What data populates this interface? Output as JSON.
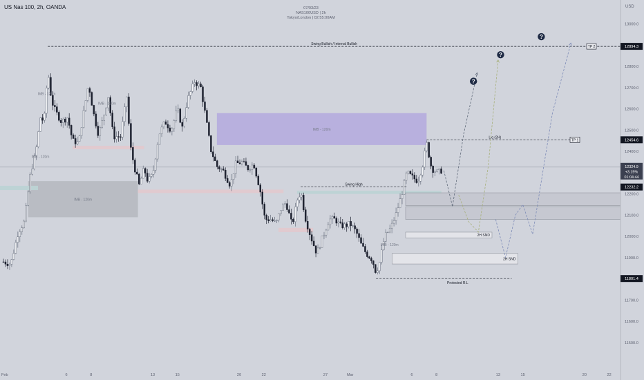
{
  "header": {
    "symbol": "US Nas 100, 2h, OANDA",
    "info_lines": [
      "07/03/23",
      "NAS100USD | 2h",
      "Tokyo/London | 02:55:00AM"
    ],
    "currency": "USD"
  },
  "chart_data": {
    "type": "candlestick",
    "price_axis": {
      "ticks": [
        13000.0,
        12900.0,
        12800.0,
        12700.0,
        12600.0,
        12500.0,
        12400.0,
        12300.0,
        12200.0,
        12100.0,
        12000.0,
        11900.0,
        11800.0,
        11700.0,
        11600.0,
        11500.0
      ],
      "tick_labels": [
        "13000.0",
        "12900.0",
        "12800.0",
        "12700.0",
        "12600.0",
        "12500.0",
        "12400.0",
        "12300.0",
        "12200.0",
        "12100.0",
        "12000.0",
        "11900.0",
        "11800.0",
        "11700.0",
        "11600.0",
        "11500.0"
      ],
      "range": [
        11415,
        13080
      ]
    },
    "time_axis": {
      "ticks": [
        {
          "label": "Feb",
          "day": 1
        },
        {
          "label": "6",
          "day": 6
        },
        {
          "label": "8",
          "day": 8
        },
        {
          "label": "13",
          "day": 13
        },
        {
          "label": "15",
          "day": 15
        },
        {
          "label": "20",
          "day": 20
        },
        {
          "label": "22",
          "day": 22
        },
        {
          "label": "27",
          "day": 27
        },
        {
          "label": "Mar",
          "day": 29
        },
        {
          "label": "6",
          "day": 34
        },
        {
          "label": "8",
          "day": 36
        },
        {
          "label": "13",
          "day": 41
        },
        {
          "label": "15",
          "day": 43
        },
        {
          "label": "20",
          "day": 48
        },
        {
          "label": "22",
          "day": 50
        }
      ],
      "range": [
        0.9,
        51.2
      ]
    },
    "series_path": [
      [
        0.9,
        11880
      ],
      [
        1.5,
        11870
      ],
      [
        2.1,
        12020
      ],
      [
        2.6,
        12070
      ],
      [
        3.1,
        12300
      ],
      [
        3.5,
        12390
      ],
      [
        3.9,
        12560
      ],
      [
        4.2,
        12540
      ],
      [
        4.5,
        12780
      ],
      [
        4.8,
        12640
      ],
      [
        5.1,
        12590
      ],
      [
        5.6,
        12540
      ],
      [
        6.1,
        12560
      ],
      [
        6.5,
        12450
      ],
      [
        7.0,
        12440
      ],
      [
        7.3,
        12550
      ],
      [
        7.8,
        12720
      ],
      [
        8.2,
        12580
      ],
      [
        8.6,
        12480
      ],
      [
        9.0,
        12560
      ],
      [
        9.4,
        12660
      ],
      [
        9.8,
        12470
      ],
      [
        10.4,
        12470
      ],
      [
        10.9,
        12660
      ],
      [
        11.2,
        12420
      ],
      [
        11.5,
        12330
      ],
      [
        11.9,
        12240
      ],
      [
        12.3,
        12320
      ],
      [
        12.6,
        12260
      ],
      [
        13.0,
        12290
      ],
      [
        13.5,
        12480
      ],
      [
        14.0,
        12540
      ],
      [
        14.5,
        12500
      ],
      [
        15.0,
        12600
      ],
      [
        15.4,
        12510
      ],
      [
        15.8,
        12640
      ],
      [
        16.4,
        12730
      ],
      [
        16.9,
        12700
      ],
      [
        17.3,
        12560
      ],
      [
        17.7,
        12410
      ],
      [
        18.2,
        12330
      ],
      [
        18.7,
        12310
      ],
      [
        19.3,
        12240
      ],
      [
        19.7,
        12340
      ],
      [
        20.2,
        12350
      ],
      [
        20.7,
        12320
      ],
      [
        21.2,
        12340
      ],
      [
        21.7,
        12220
      ],
      [
        22.1,
        12080
      ],
      [
        22.6,
        12080
      ],
      [
        23.0,
        12060
      ],
      [
        23.4,
        12130
      ],
      [
        23.8,
        12160
      ],
      [
        24.3,
        12050
      ],
      [
        24.7,
        12170
      ],
      [
        25.0,
        12210
      ],
      [
        25.4,
        12080
      ],
      [
        25.8,
        12000
      ],
      [
        26.3,
        11920
      ],
      [
        26.8,
        12000
      ],
      [
        27.3,
        12080
      ],
      [
        27.8,
        12080
      ],
      [
        28.2,
        12050
      ],
      [
        28.6,
        12050
      ],
      [
        29.0,
        12060
      ],
      [
        29.5,
        12020
      ],
      [
        29.9,
        11960
      ],
      [
        30.3,
        11920
      ],
      [
        30.8,
        11890
      ],
      [
        31.1,
        11830
      ],
      [
        31.4,
        11880
      ],
      [
        31.8,
        12000
      ],
      [
        32.3,
        12040
      ],
      [
        32.7,
        12100
      ],
      [
        33.1,
        12180
      ],
      [
        33.6,
        12300
      ],
      [
        34.0,
        12280
      ],
      [
        34.5,
        12260
      ],
      [
        34.9,
        12340
      ],
      [
        35.2,
        12440
      ],
      [
        35.6,
        12320
      ],
      [
        36.1,
        12300
      ],
      [
        36.4,
        12310
      ]
    ],
    "zones": [
      {
        "name": "IMB - 120m",
        "x0": 18.2,
        "x1": 35.2,
        "y0": 12430,
        "y1": 12580,
        "kind": "imb-purple"
      },
      {
        "name": "IMB - 120m",
        "x0": 2.9,
        "x1": 11.8,
        "y0": 12090,
        "y1": 12260,
        "kind": "imb-gray"
      },
      {
        "name": "",
        "x0": 0.0,
        "x1": 3.7,
        "y0": 12218,
        "y1": 12238,
        "kind": "teal"
      },
      {
        "name": "",
        "x0": 11.8,
        "x1": 23.6,
        "y0": 12204,
        "y1": 12220,
        "kind": "pink"
      },
      {
        "name": "",
        "x0": 6.5,
        "x1": 12.3,
        "y0": 12410,
        "y1": 12426,
        "kind": "pink"
      },
      {
        "name": "",
        "x0": 23.2,
        "x1": 26.0,
        "y0": 12020,
        "y1": 12040,
        "kind": "pink"
      },
      {
        "name": "",
        "x0": 24.7,
        "x1": 36.4,
        "y0": 12200,
        "y1": 12214,
        "kind": "teal"
      },
      {
        "name": "",
        "x0": 33.5,
        "x1": 51.2,
        "y0": 12145,
        "y1": 12205,
        "kind": "grid-band"
      },
      {
        "name": "",
        "x0": 33.5,
        "x1": 51.2,
        "y0": 12080,
        "y1": 12140,
        "kind": "grid-band"
      },
      {
        "name": "2H SND",
        "x0": 33.5,
        "x1": 40.5,
        "y0": 11993,
        "y1": 12020,
        "kind": "snd"
      },
      {
        "name": "2H SND",
        "x0": 32.4,
        "x1": 42.6,
        "y0": 11870,
        "y1": 11920,
        "kind": "snd"
      }
    ],
    "levels": [
      {
        "label": "Swing Bullish / Internal Bullish",
        "x0": 4.5,
        "x1": 51.2,
        "price": 12894.3,
        "tag": "TP 2"
      },
      {
        "label": "Liq (2H)",
        "x0": 35.2,
        "x1": 47.4,
        "price": 12454.6,
        "tag": "TP 1"
      },
      {
        "label": "Swing High",
        "x0": 25.0,
        "x1": 33.6,
        "price": 12232.2,
        "tag": ""
      },
      {
        "label": "Protected R.L",
        "x0": 31.1,
        "x1": 42.1,
        "price": 11801.4,
        "tag": ""
      }
    ],
    "small_labels": [
      {
        "text": "IMB - 120m",
        "day": 4.4,
        "price": 12665
      },
      {
        "text": "IMB - 120m",
        "day": 9.3,
        "price": 12620
      },
      {
        "text": "IMB - 120m",
        "day": 3.9,
        "price": 12370
      },
      {
        "text": "IMB - 120m",
        "day": 32.2,
        "price": 11955
      }
    ],
    "projections": [
      {
        "color": "#606a7a",
        "points": [
          [
            36.6,
            12310
          ],
          [
            37.3,
            12140
          ],
          [
            38.2,
            12480
          ],
          [
            39.3,
            12770
          ]
        ]
      },
      {
        "color": "#a7b07a",
        "points": [
          [
            37.8,
            12195
          ],
          [
            38.6,
            12070
          ],
          [
            39.4,
            12020
          ],
          [
            40.2,
            12330
          ],
          [
            41.0,
            12830
          ]
        ]
      },
      {
        "color": "#7d8bb7",
        "points": [
          [
            40.8,
            12080
          ],
          [
            41.6,
            11900
          ],
          [
            42.4,
            12100
          ],
          [
            43.0,
            12150
          ],
          [
            43.8,
            12010
          ],
          [
            45.4,
            12580
          ],
          [
            46.9,
            12910
          ]
        ]
      }
    ],
    "question_markers": [
      {
        "day": 39.0,
        "price": 12730
      },
      {
        "day": 41.2,
        "price": 12855
      },
      {
        "day": 44.5,
        "price": 12940
      }
    ],
    "price_labels": [
      {
        "text": "12894.3",
        "price": 12894.3,
        "dark": true
      },
      {
        "text": "12454.6",
        "price": 12454.6,
        "dark": true
      },
      {
        "text": "12232.2",
        "price": 12232.2,
        "dark": true
      },
      {
        "text": "11801.4",
        "price": 11801.4,
        "dark": true
      }
    ],
    "last_price": {
      "price": 12310,
      "lines": [
        "12324.9",
        "+3.15%",
        "01:04:44"
      ]
    }
  }
}
